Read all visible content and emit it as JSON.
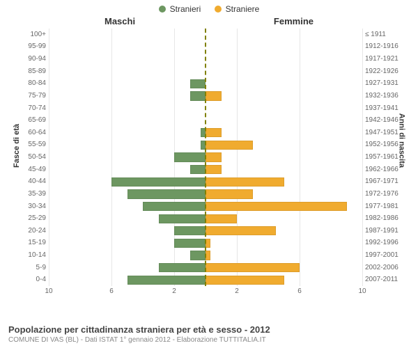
{
  "type": "population-pyramid",
  "legend": {
    "male": {
      "label": "Stranieri",
      "color": "#6d9761"
    },
    "female": {
      "label": "Straniere",
      "color": "#f0ab2f"
    }
  },
  "column_headers": {
    "left": "Maschi",
    "right": "Femmine"
  },
  "axis_titles": {
    "left": "Fasce di età",
    "right": "Anni di nascita"
  },
  "x_axis": {
    "max": 10,
    "ticks_left": [
      10,
      6,
      2
    ],
    "ticks_right": [
      2,
      6,
      10
    ],
    "gridline_positions": [
      -10,
      -6,
      -2,
      2,
      6,
      10
    ]
  },
  "rows": [
    {
      "age": "100+",
      "birth": "≤ 1911",
      "m": 0,
      "f": 0
    },
    {
      "age": "95-99",
      "birth": "1912-1916",
      "m": 0,
      "f": 0
    },
    {
      "age": "90-94",
      "birth": "1917-1921",
      "m": 0,
      "f": 0
    },
    {
      "age": "85-89",
      "birth": "1922-1926",
      "m": 0,
      "f": 0
    },
    {
      "age": "80-84",
      "birth": "1927-1931",
      "m": 1,
      "f": 0
    },
    {
      "age": "75-79",
      "birth": "1932-1936",
      "m": 1,
      "f": 1
    },
    {
      "age": "70-74",
      "birth": "1937-1941",
      "m": 0,
      "f": 0
    },
    {
      "age": "65-69",
      "birth": "1942-1946",
      "m": 0,
      "f": 0
    },
    {
      "age": "60-64",
      "birth": "1947-1951",
      "m": 0.3,
      "f": 1
    },
    {
      "age": "55-59",
      "birth": "1952-1956",
      "m": 0.3,
      "f": 3
    },
    {
      "age": "50-54",
      "birth": "1957-1961",
      "m": 2,
      "f": 1
    },
    {
      "age": "45-49",
      "birth": "1962-1966",
      "m": 1,
      "f": 1
    },
    {
      "age": "40-44",
      "birth": "1967-1971",
      "m": 6,
      "f": 5
    },
    {
      "age": "35-39",
      "birth": "1972-1976",
      "m": 5,
      "f": 3
    },
    {
      "age": "30-34",
      "birth": "1977-1981",
      "m": 4,
      "f": 9
    },
    {
      "age": "25-29",
      "birth": "1982-1986",
      "m": 3,
      "f": 2
    },
    {
      "age": "20-24",
      "birth": "1987-1991",
      "m": 2,
      "f": 4.5
    },
    {
      "age": "15-19",
      "birth": "1992-1996",
      "m": 2,
      "f": 0.3
    },
    {
      "age": "10-14",
      "birth": "1997-2001",
      "m": 1,
      "f": 0.3
    },
    {
      "age": "5-9",
      "birth": "2002-2006",
      "m": 3,
      "f": 6
    },
    {
      "age": "0-4",
      "birth": "2007-2011",
      "m": 5,
      "f": 5
    }
  ],
  "footer": {
    "title": "Popolazione per cittadinanza straniera per età e sesso - 2012",
    "subtitle": "COMUNE DI VAS (BL) - Dati ISTAT 1° gennaio 2012 - Elaborazione TUTTITALIA.IT"
  },
  "styling": {
    "background": "#ffffff",
    "grid_color": "#e6e6e6",
    "center_line_color": "#808000",
    "label_color": "#666666",
    "header_color": "#333333",
    "label_fontsize": 10,
    "header_fontsize": 13
  }
}
